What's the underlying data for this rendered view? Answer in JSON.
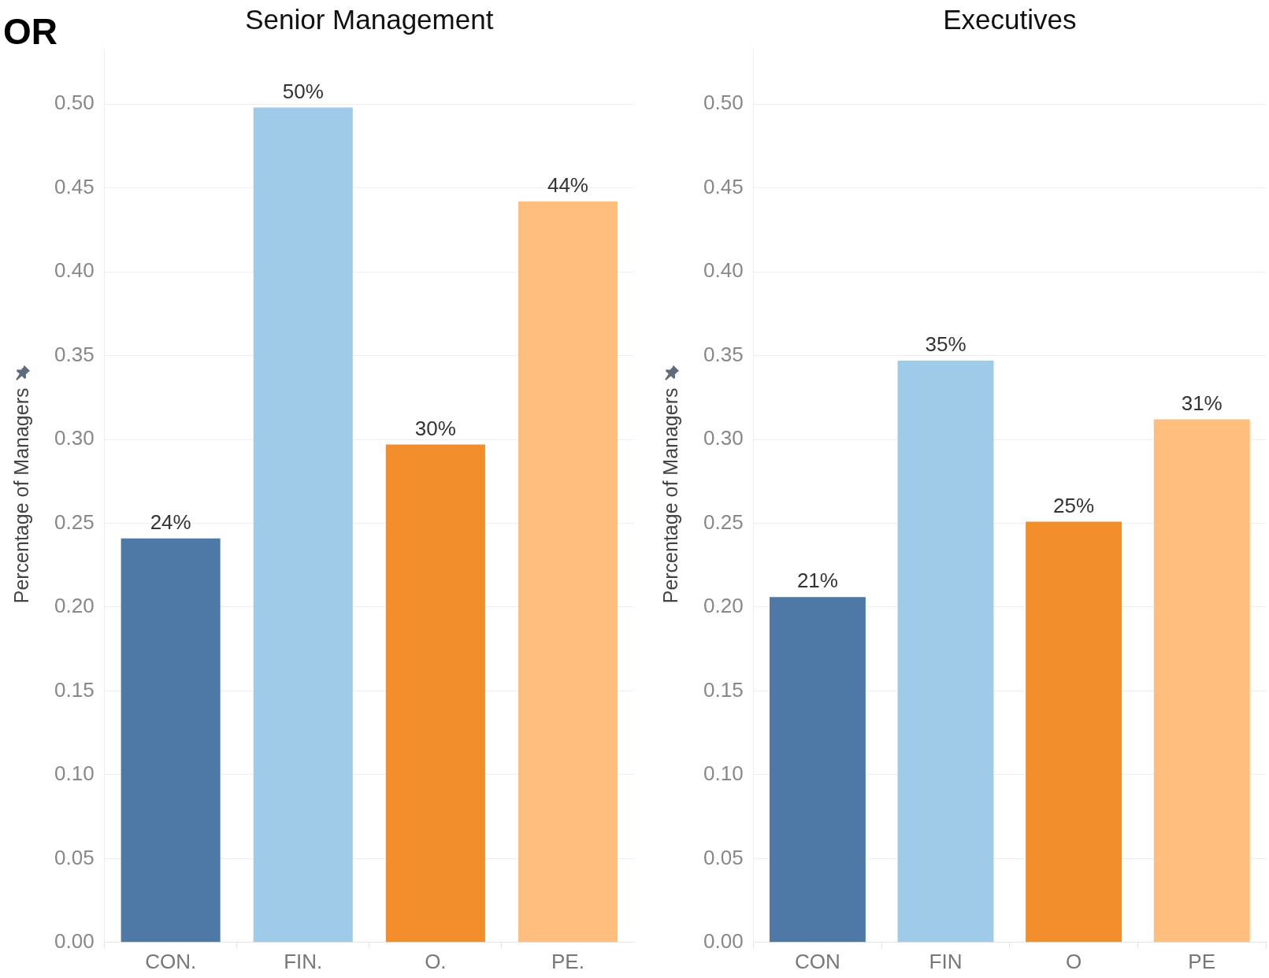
{
  "chart_data": [
    {
      "type": "bar",
      "title": "Senior Management",
      "ylabel": "Percentage of Managers",
      "annotations": [
        "OR"
      ],
      "categories": [
        "CON.",
        "FIN.",
        "O.",
        "PE."
      ],
      "values": [
        0.241,
        0.498,
        0.297,
        0.442
      ],
      "colors": [
        "#4e79a7",
        "#a0cbe8",
        "#f28e2b",
        "#ffbe7d"
      ],
      "value_labels": [
        "24%",
        "50%",
        "30%",
        "44%"
      ],
      "ylim": [
        0,
        0.533
      ],
      "yticks": [
        {
          "value": 0,
          "label": "0.00"
        },
        {
          "value": 0.05,
          "label": "0.05"
        },
        {
          "value": 0.1,
          "label": "0.10"
        },
        {
          "value": 0.15,
          "label": "0.15"
        },
        {
          "value": 0.2,
          "label": "0.20"
        },
        {
          "value": 0.25,
          "label": "0.25"
        },
        {
          "value": 0.3,
          "label": "0.30"
        },
        {
          "value": 0.35,
          "label": "0.35"
        },
        {
          "value": 0.4,
          "label": "0.40"
        },
        {
          "value": 0.45,
          "label": "0.45"
        },
        {
          "value": 0.5,
          "label": "0.50"
        }
      ],
      "grid": "y"
    },
    {
      "type": "bar",
      "title": "Executives",
      "ylabel": "Percentage of Managers",
      "categories": [
        "CON",
        "FIN",
        "O",
        "PE"
      ],
      "values": [
        0.206,
        0.347,
        0.251,
        0.312
      ],
      "colors": [
        "#4e79a7",
        "#a0cbe8",
        "#f28e2b",
        "#ffbe7d"
      ],
      "value_labels": [
        "21%",
        "35%",
        "25%",
        "31%"
      ],
      "ylim": [
        0,
        0.533
      ],
      "yticks": [
        {
          "value": 0,
          "label": "0.00"
        },
        {
          "value": 0.05,
          "label": "0.05"
        },
        {
          "value": 0.1,
          "label": "0.10"
        },
        {
          "value": 0.15,
          "label": "0.15"
        },
        {
          "value": 0.2,
          "label": "0.20"
        },
        {
          "value": 0.25,
          "label": "0.25"
        },
        {
          "value": 0.3,
          "label": "0.30"
        },
        {
          "value": 0.35,
          "label": "0.35"
        },
        {
          "value": 0.4,
          "label": "0.40"
        },
        {
          "value": 0.45,
          "label": "0.45"
        },
        {
          "value": 0.5,
          "label": "0.50"
        }
      ],
      "grid": "y"
    }
  ]
}
